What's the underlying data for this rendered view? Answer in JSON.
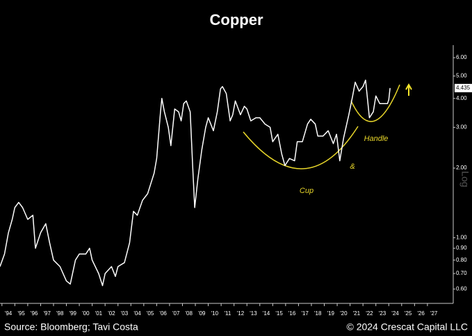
{
  "chart_data": {
    "type": "line",
    "title": "Copper",
    "x": [
      1993.85,
      1994.2,
      1994.5,
      1994.8,
      1995.0,
      1995.3,
      1995.6,
      1996.0,
      1996.4,
      1996.6,
      1997.0,
      1997.4,
      1997.7,
      1998.0,
      1998.5,
      1999.0,
      1999.3,
      1999.7,
      2000.0,
      2000.5,
      2000.8,
      2001.0,
      2001.5,
      2001.8,
      2002.0,
      2002.5,
      2002.8,
      2003.0,
      2003.5,
      2003.9,
      2004.2,
      2004.5,
      2004.9,
      2005.3,
      2005.8,
      2006.0,
      2006.3,
      2006.4,
      2006.6,
      2006.9,
      2007.1,
      2007.4,
      2007.7,
      2007.9,
      2008.1,
      2008.3,
      2008.6,
      2008.8,
      2008.95,
      2009.2,
      2009.5,
      2009.8,
      2010.0,
      2010.4,
      2010.7,
      2010.95,
      2011.1,
      2011.4,
      2011.7,
      2011.9,
      2012.1,
      2012.5,
      2012.8,
      2013.0,
      2013.3,
      2013.7,
      2014.0,
      2014.4,
      2014.8,
      2015.0,
      2015.4,
      2015.7,
      2015.95,
      2016.3,
      2016.7,
      2016.9,
      2017.3,
      2017.7,
      2017.95,
      2018.3,
      2018.5,
      2018.9,
      2019.3,
      2019.7,
      2019.95,
      2020.2,
      2020.5,
      2020.9,
      2021.2,
      2021.4,
      2021.7,
      2022.0,
      2022.2,
      2022.5,
      2022.8,
      2023.0,
      2023.3,
      2023.6,
      2023.9,
      2024.0,
      2024.1
    ],
    "values": [
      0.75,
      0.85,
      1.05,
      1.2,
      1.35,
      1.42,
      1.35,
      1.2,
      1.25,
      0.9,
      1.05,
      1.15,
      0.95,
      0.8,
      0.75,
      0.65,
      0.63,
      0.8,
      0.85,
      0.85,
      0.9,
      0.8,
      0.7,
      0.62,
      0.7,
      0.75,
      0.68,
      0.75,
      0.78,
      0.95,
      1.3,
      1.25,
      1.45,
      1.55,
      1.9,
      2.2,
      3.5,
      4.0,
      3.5,
      3.0,
      2.5,
      3.6,
      3.5,
      3.2,
      3.8,
      3.9,
      3.5,
      2.0,
      1.35,
      1.8,
      2.4,
      3.0,
      3.3,
      2.9,
      3.5,
      4.4,
      4.5,
      4.2,
      3.2,
      3.4,
      3.9,
      3.4,
      3.7,
      3.6,
      3.2,
      3.3,
      3.3,
      3.1,
      3.0,
      2.6,
      2.8,
      2.3,
      2.05,
      2.2,
      2.15,
      2.6,
      2.6,
      3.1,
      3.25,
      3.1,
      2.75,
      2.75,
      2.9,
      2.55,
      2.8,
      2.15,
      2.7,
      3.4,
      4.1,
      4.7,
      4.3,
      4.5,
      4.8,
      3.3,
      3.5,
      4.1,
      3.8,
      3.8,
      3.8,
      3.95,
      4.435
    ],
    "color": "#ffffff",
    "log_scale": true,
    "ylim": [
      0.52,
      6.8
    ],
    "yticks": [
      {
        "value": 0.6,
        "label": "0.60"
      },
      {
        "value": 0.7,
        "label": "0.70"
      },
      {
        "value": 0.8,
        "label": "0.80"
      },
      {
        "value": 0.9,
        "label": "0.90"
      },
      {
        "value": 1,
        "label": "1.00"
      },
      {
        "value": 2,
        "label": "2.00"
      },
      {
        "value": 3,
        "label": "3.00"
      },
      {
        "value": 4,
        "label": "4.00"
      },
      {
        "value": 5,
        "label": "5.00"
      },
      {
        "value": 6,
        "label": "6.00"
      }
    ],
    "xlim": [
      1993.85,
      2029.0
    ],
    "xticks": [
      {
        "value": 1994,
        "label": "'94"
      },
      {
        "value": 1995,
        "label": "'95"
      },
      {
        "value": 1996,
        "label": "'96"
      },
      {
        "value": 1997,
        "label": "'97"
      },
      {
        "value": 1998,
        "label": "'98"
      },
      {
        "value": 1999,
        "label": "'99"
      },
      {
        "value": 2000,
        "label": "'00"
      },
      {
        "value": 2001,
        "label": "'01"
      },
      {
        "value": 2002,
        "label": "'02"
      },
      {
        "value": 2003,
        "label": "'03"
      },
      {
        "value": 2004,
        "label": "'04"
      },
      {
        "value": 2005,
        "label": "'05"
      },
      {
        "value": 2006,
        "label": "'06"
      },
      {
        "value": 2007,
        "label": "'07"
      },
      {
        "value": 2008,
        "label": "'08"
      },
      {
        "value": 2009,
        "label": "'09"
      },
      {
        "value": 2010,
        "label": "'10"
      },
      {
        "value": 2011,
        "label": "'11"
      },
      {
        "value": 2012,
        "label": "'12"
      },
      {
        "value": 2013,
        "label": "'13"
      },
      {
        "value": 2014,
        "label": "'14"
      },
      {
        "value": 2015,
        "label": "'15"
      },
      {
        "value": 2016,
        "label": "'16"
      },
      {
        "value": 2017,
        "label": "'17"
      },
      {
        "value": 2018,
        "label": "'18"
      },
      {
        "value": 2019,
        "label": "'19"
      },
      {
        "value": 2020,
        "label": "'20"
      },
      {
        "value": 2021,
        "label": "'21"
      },
      {
        "value": 2022,
        "label": "'22"
      },
      {
        "value": 2023,
        "label": "'23"
      },
      {
        "value": 2024,
        "label": "'24"
      },
      {
        "value": 2025,
        "label": "'25"
      },
      {
        "value": 2026,
        "label": "'26"
      },
      {
        "value": 2027,
        "label": "'27"
      }
    ],
    "last_value": 4.435,
    "scale_label": "Log",
    "annotations": {
      "cup": "Cup",
      "and": "&",
      "handle": "Handle"
    },
    "source": "Source: Bloomberg; Tavi Costa",
    "copyright": "© 2024 Crescat Capital LLC"
  }
}
